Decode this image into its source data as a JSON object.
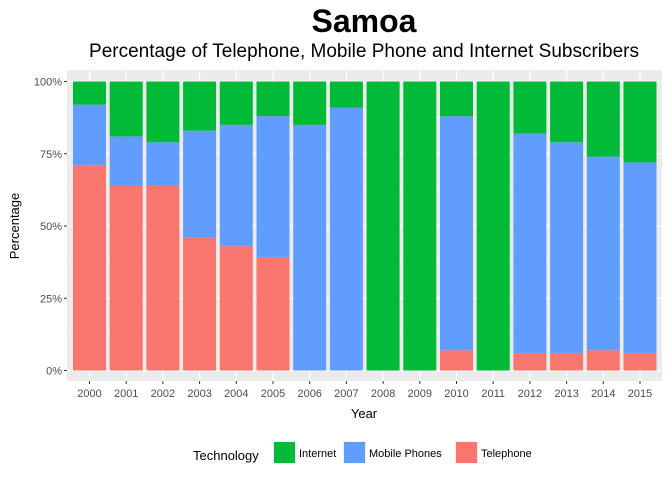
{
  "chart_data": {
    "type": "bar",
    "stacked": true,
    "title": "Samoa",
    "subtitle": "Percentage of Telephone, Mobile Phone and Internet Subscribers",
    "xlabel": "Year",
    "ylabel": "Percentage",
    "ylim": [
      0,
      1
    ],
    "yticks": [
      0,
      0.25,
      0.5,
      0.75,
      1
    ],
    "ytick_labels": [
      "0%",
      "25%",
      "50%",
      "75%",
      "100%"
    ],
    "grid": true,
    "legend_position": "bottom",
    "legend_title": "Technology",
    "categories": [
      "2000",
      "2001",
      "2002",
      "2003",
      "2004",
      "2005",
      "2006",
      "2007",
      "2008",
      "2009",
      "2010",
      "2011",
      "2012",
      "2013",
      "2014",
      "2015"
    ],
    "series": [
      {
        "name": "Internet",
        "color": "#00BA38",
        "values": [
          0.08,
          0.19,
          0.21,
          0.17,
          0.15,
          0.12,
          0.15,
          0.09,
          1.0,
          1.0,
          0.12,
          1.0,
          0.18,
          0.21,
          0.26,
          0.28
        ]
      },
      {
        "name": "Mobile Phones",
        "color": "#619CFF",
        "values": [
          0.21,
          0.17,
          0.15,
          0.37,
          0.42,
          0.49,
          0.85,
          0.91,
          0.0,
          0.0,
          0.81,
          0.0,
          0.76,
          0.73,
          0.67,
          0.66
        ]
      },
      {
        "name": "Telephone",
        "color": "#F8766D",
        "values": [
          0.71,
          0.64,
          0.64,
          0.46,
          0.43,
          0.39,
          0.0,
          0.0,
          0.0,
          0.0,
          0.07,
          0.0,
          0.06,
          0.06,
          0.07,
          0.06
        ]
      }
    ]
  }
}
